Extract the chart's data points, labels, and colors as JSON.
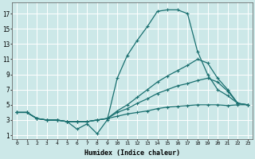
{
  "xlabel": "Humidex (Indice chaleur)",
  "bg_color": "#cce8e8",
  "grid_color": "#ffffff",
  "line_color": "#1a7070",
  "x_ticks": [
    0,
    1,
    2,
    3,
    4,
    5,
    6,
    7,
    8,
    9,
    10,
    11,
    12,
    13,
    14,
    15,
    16,
    17,
    18,
    19,
    20,
    21,
    22,
    23
  ],
  "y_ticks": [
    1,
    3,
    5,
    7,
    9,
    11,
    13,
    15,
    17
  ],
  "ylim": [
    0.5,
    18.5
  ],
  "xlim": [
    -0.5,
    23.5
  ],
  "line_top_x": [
    0,
    1,
    2,
    3,
    4,
    5,
    6,
    7,
    8,
    9,
    10,
    11,
    12,
    13,
    14,
    15,
    16,
    17,
    18,
    19,
    20,
    21,
    22,
    23
  ],
  "line_top_y": [
    4.0,
    4.0,
    3.2,
    3.0,
    3.0,
    2.8,
    1.8,
    2.5,
    1.2,
    3.0,
    8.5,
    11.5,
    13.5,
    15.3,
    17.3,
    17.5,
    17.5,
    17.0,
    12.0,
    9.0,
    7.0,
    6.2,
    5.2,
    5.0
  ],
  "line_mid1_x": [
    0,
    1,
    2,
    3,
    4,
    5,
    6,
    7,
    8,
    9,
    10,
    11,
    12,
    13,
    14,
    15,
    16,
    17,
    18,
    19,
    20,
    21,
    22,
    23
  ],
  "line_mid1_y": [
    4.0,
    4.0,
    3.2,
    3.0,
    3.0,
    2.8,
    2.8,
    2.8,
    3.0,
    3.2,
    4.2,
    5.0,
    6.0,
    7.0,
    8.0,
    8.8,
    9.5,
    10.2,
    11.0,
    10.5,
    8.5,
    7.0,
    5.2,
    5.0
  ],
  "line_mid2_x": [
    0,
    1,
    2,
    3,
    4,
    5,
    6,
    7,
    8,
    9,
    10,
    11,
    12,
    13,
    14,
    15,
    16,
    17,
    18,
    19,
    20,
    21,
    22,
    23
  ],
  "line_mid2_y": [
    4.0,
    4.0,
    3.2,
    3.0,
    3.0,
    2.8,
    2.8,
    2.8,
    3.0,
    3.2,
    4.0,
    4.5,
    5.2,
    5.8,
    6.5,
    7.0,
    7.5,
    7.8,
    8.2,
    8.5,
    8.0,
    6.8,
    5.2,
    5.0
  ],
  "line_bot_x": [
    0,
    1,
    2,
    3,
    4,
    5,
    6,
    7,
    8,
    9,
    10,
    11,
    12,
    13,
    14,
    15,
    16,
    17,
    18,
    19,
    20,
    21,
    22,
    23
  ],
  "line_bot_y": [
    4.0,
    4.0,
    3.2,
    3.0,
    3.0,
    2.8,
    2.8,
    2.8,
    3.0,
    3.2,
    3.5,
    3.8,
    4.0,
    4.2,
    4.5,
    4.7,
    4.8,
    4.9,
    5.0,
    5.0,
    5.0,
    4.9,
    5.0,
    5.0
  ]
}
